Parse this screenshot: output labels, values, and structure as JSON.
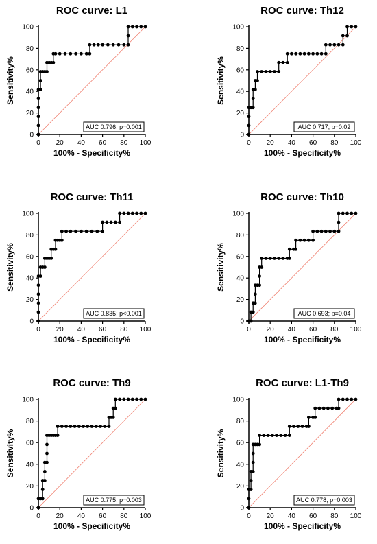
{
  "chart_data": [
    {
      "type": "line",
      "title": "ROC curve: L1",
      "xlabel": "100% - Specificity%",
      "ylabel": "Sensitivity%",
      "xlim": [
        0,
        100
      ],
      "ylim": [
        0,
        100
      ],
      "xticks": [
        "0",
        "20",
        "40",
        "60",
        "80",
        "100"
      ],
      "yticks": [
        "0",
        "20",
        "40",
        "60",
        "80",
        "100"
      ],
      "annotation": "AUC 0.796; p=0.001",
      "reference_line": true,
      "roc": [
        [
          0,
          0
        ],
        [
          0,
          8.3
        ],
        [
          0,
          16.7
        ],
        [
          0,
          25
        ],
        [
          0,
          33.3
        ],
        [
          0,
          41.7
        ],
        [
          2,
          41.7
        ],
        [
          2,
          50
        ],
        [
          2,
          58.3
        ],
        [
          4,
          58.3
        ],
        [
          6,
          58.3
        ],
        [
          8,
          58.3
        ],
        [
          8,
          66.7
        ],
        [
          10,
          66.7
        ],
        [
          12,
          66.7
        ],
        [
          14,
          66.7
        ],
        [
          14,
          75
        ],
        [
          16,
          75
        ],
        [
          20,
          75
        ],
        [
          25,
          75
        ],
        [
          30,
          75
        ],
        [
          35,
          75
        ],
        [
          40,
          75
        ],
        [
          45,
          75
        ],
        [
          48,
          75
        ],
        [
          48,
          83.3
        ],
        [
          52,
          83.3
        ],
        [
          56,
          83.3
        ],
        [
          60,
          83.3
        ],
        [
          65,
          83.3
        ],
        [
          70,
          83.3
        ],
        [
          75,
          83.3
        ],
        [
          80,
          83.3
        ],
        [
          84,
          83.3
        ],
        [
          84,
          91.7
        ],
        [
          84,
          100
        ],
        [
          88,
          100
        ],
        [
          92,
          100
        ],
        [
          96,
          100
        ],
        [
          100,
          100
        ]
      ]
    },
    {
      "type": "line",
      "title": "ROC curve: Th12",
      "xlabel": "100% - Specificity%",
      "ylabel": "Sensitivity%",
      "xlim": [
        0,
        100
      ],
      "ylim": [
        0,
        100
      ],
      "xticks": [
        "0",
        "20",
        "40",
        "60",
        "80",
        "100"
      ],
      "yticks": [
        "0",
        "20",
        "40",
        "60",
        "80",
        "100"
      ],
      "annotation": "AUC 0,717; p=0.02",
      "reference_line": true,
      "roc": [
        [
          0,
          0
        ],
        [
          0,
          8.3
        ],
        [
          0,
          16.7
        ],
        [
          0,
          25
        ],
        [
          2,
          25
        ],
        [
          4,
          25
        ],
        [
          4,
          33.3
        ],
        [
          4,
          41.7
        ],
        [
          6,
          41.7
        ],
        [
          6,
          50
        ],
        [
          8,
          50
        ],
        [
          8,
          58.3
        ],
        [
          12,
          58.3
        ],
        [
          16,
          58.3
        ],
        [
          20,
          58.3
        ],
        [
          24,
          58.3
        ],
        [
          28,
          58.3
        ],
        [
          28,
          66.7
        ],
        [
          32,
          66.7
        ],
        [
          36,
          66.7
        ],
        [
          36,
          75
        ],
        [
          40,
          75
        ],
        [
          44,
          75
        ],
        [
          48,
          75
        ],
        [
          52,
          75
        ],
        [
          56,
          75
        ],
        [
          60,
          75
        ],
        [
          64,
          75
        ],
        [
          68,
          75
        ],
        [
          72,
          75
        ],
        [
          72,
          83.3
        ],
        [
          76,
          83.3
        ],
        [
          80,
          83.3
        ],
        [
          84,
          83.3
        ],
        [
          88,
          83.3
        ],
        [
          88,
          91.7
        ],
        [
          92,
          91.7
        ],
        [
          92,
          100
        ],
        [
          96,
          100
        ],
        [
          100,
          100
        ]
      ]
    },
    {
      "type": "line",
      "title": "ROC curve: Th11",
      "xlabel": "100% - Specificity%",
      "ylabel": "Sensitivity%",
      "xlim": [
        0,
        100
      ],
      "ylim": [
        0,
        100
      ],
      "xticks": [
        "0",
        "20",
        "40",
        "60",
        "80",
        "100"
      ],
      "yticks": [
        "0",
        "20",
        "40",
        "60",
        "80",
        "100"
      ],
      "annotation": "AUC 0.835; p<0.001",
      "reference_line": true,
      "roc": [
        [
          0,
          0
        ],
        [
          0,
          8.3
        ],
        [
          0,
          16.7
        ],
        [
          0,
          25
        ],
        [
          0,
          33.3
        ],
        [
          0,
          41.7
        ],
        [
          2,
          41.7
        ],
        [
          2,
          50
        ],
        [
          4,
          50
        ],
        [
          6,
          50
        ],
        [
          6,
          58.3
        ],
        [
          8,
          58.3
        ],
        [
          10,
          58.3
        ],
        [
          12,
          58.3
        ],
        [
          12,
          66.7
        ],
        [
          14,
          66.7
        ],
        [
          16,
          66.7
        ],
        [
          16,
          75
        ],
        [
          18,
          75
        ],
        [
          20,
          75
        ],
        [
          22,
          75
        ],
        [
          22,
          83.3
        ],
        [
          26,
          83.3
        ],
        [
          30,
          83.3
        ],
        [
          35,
          83.3
        ],
        [
          40,
          83.3
        ],
        [
          45,
          83.3
        ],
        [
          50,
          83.3
        ],
        [
          55,
          83.3
        ],
        [
          60,
          83.3
        ],
        [
          60,
          91.7
        ],
        [
          64,
          91.7
        ],
        [
          68,
          91.7
        ],
        [
          72,
          91.7
        ],
        [
          76,
          91.7
        ],
        [
          76,
          100
        ],
        [
          80,
          100
        ],
        [
          84,
          100
        ],
        [
          88,
          100
        ],
        [
          92,
          100
        ],
        [
          96,
          100
        ],
        [
          100,
          100
        ]
      ]
    },
    {
      "type": "line",
      "title": "ROC curve: Th10",
      "xlabel": "100% - Specificity%",
      "ylabel": "Sensitivity%",
      "xlim": [
        0,
        100
      ],
      "ylim": [
        0,
        100
      ],
      "xticks": [
        "0",
        "20",
        "40",
        "60",
        "80",
        "100"
      ],
      "yticks": [
        "0",
        "20",
        "40",
        "60",
        "80",
        "100"
      ],
      "annotation": "AUC 0.693; p=0.04",
      "reference_line": true,
      "roc": [
        [
          0,
          0
        ],
        [
          2,
          0
        ],
        [
          2,
          8.3
        ],
        [
          4,
          8.3
        ],
        [
          4,
          16.7
        ],
        [
          6,
          16.7
        ],
        [
          6,
          25
        ],
        [
          6,
          33.3
        ],
        [
          8,
          33.3
        ],
        [
          10,
          33.3
        ],
        [
          10,
          41.7
        ],
        [
          10,
          50
        ],
        [
          12,
          50
        ],
        [
          12,
          58.3
        ],
        [
          16,
          58.3
        ],
        [
          20,
          58.3
        ],
        [
          24,
          58.3
        ],
        [
          28,
          58.3
        ],
        [
          32,
          58.3
        ],
        [
          36,
          58.3
        ],
        [
          38,
          58.3
        ],
        [
          38,
          66.7
        ],
        [
          42,
          66.7
        ],
        [
          44,
          66.7
        ],
        [
          44,
          75
        ],
        [
          48,
          75
        ],
        [
          52,
          75
        ],
        [
          56,
          75
        ],
        [
          60,
          75
        ],
        [
          60,
          83.3
        ],
        [
          64,
          83.3
        ],
        [
          68,
          83.3
        ],
        [
          72,
          83.3
        ],
        [
          76,
          83.3
        ],
        [
          80,
          83.3
        ],
        [
          84,
          83.3
        ],
        [
          84,
          91.7
        ],
        [
          84,
          100
        ],
        [
          88,
          100
        ],
        [
          92,
          100
        ],
        [
          96,
          100
        ],
        [
          100,
          100
        ]
      ]
    },
    {
      "type": "line",
      "title": "ROC curve: Th9",
      "xlabel": "100% - Specificity%",
      "ylabel": "Sensitivity%",
      "xlim": [
        0,
        100
      ],
      "ylim": [
        0,
        100
      ],
      "xticks": [
        "0",
        "20",
        "40",
        "60",
        "80",
        "100"
      ],
      "yticks": [
        "0",
        "20",
        "40",
        "60",
        "80",
        "100"
      ],
      "annotation": "AUC 0.775; p=0.003",
      "reference_line": true,
      "roc": [
        [
          0,
          0
        ],
        [
          0,
          8.3
        ],
        [
          2,
          8.3
        ],
        [
          4,
          8.3
        ],
        [
          4,
          16.7
        ],
        [
          4,
          25
        ],
        [
          6,
          25
        ],
        [
          6,
          33.3
        ],
        [
          6,
          41.7
        ],
        [
          8,
          41.7
        ],
        [
          8,
          50
        ],
        [
          8,
          58.3
        ],
        [
          8,
          66.7
        ],
        [
          10,
          66.7
        ],
        [
          12,
          66.7
        ],
        [
          14,
          66.7
        ],
        [
          16,
          66.7
        ],
        [
          18,
          66.7
        ],
        [
          18,
          75
        ],
        [
          22,
          75
        ],
        [
          26,
          75
        ],
        [
          30,
          75
        ],
        [
          34,
          75
        ],
        [
          38,
          75
        ],
        [
          42,
          75
        ],
        [
          46,
          75
        ],
        [
          50,
          75
        ],
        [
          54,
          75
        ],
        [
          58,
          75
        ],
        [
          62,
          75
        ],
        [
          66,
          75
        ],
        [
          66,
          83.3
        ],
        [
          68,
          83.3
        ],
        [
          70,
          83.3
        ],
        [
          70,
          91.7
        ],
        [
          72,
          91.7
        ],
        [
          72,
          100
        ],
        [
          76,
          100
        ],
        [
          80,
          100
        ],
        [
          84,
          100
        ],
        [
          88,
          100
        ],
        [
          92,
          100
        ],
        [
          96,
          100
        ],
        [
          100,
          100
        ]
      ]
    },
    {
      "type": "line",
      "title": "ROC curve: L1-Th9",
      "xlabel": "100% - Specificity%",
      "ylabel": "Sensitivity%",
      "xlim": [
        0,
        100
      ],
      "ylim": [
        0,
        100
      ],
      "xticks": [
        "0",
        "20",
        "40",
        "60",
        "80",
        "100"
      ],
      "yticks": [
        "0",
        "20",
        "40",
        "60",
        "80",
        "100"
      ],
      "annotation": "AUC 0.778; p=0.003",
      "reference_line": true,
      "roc": [
        [
          0,
          0
        ],
        [
          0,
          8.3
        ],
        [
          0,
          16.7
        ],
        [
          2,
          16.7
        ],
        [
          2,
          25
        ],
        [
          2,
          33.3
        ],
        [
          4,
          33.3
        ],
        [
          4,
          41.7
        ],
        [
          4,
          50
        ],
        [
          4,
          58.3
        ],
        [
          6,
          58.3
        ],
        [
          8,
          58.3
        ],
        [
          10,
          58.3
        ],
        [
          10,
          66.7
        ],
        [
          14,
          66.7
        ],
        [
          18,
          66.7
        ],
        [
          22,
          66.7
        ],
        [
          26,
          66.7
        ],
        [
          30,
          66.7
        ],
        [
          34,
          66.7
        ],
        [
          38,
          66.7
        ],
        [
          38,
          75
        ],
        [
          42,
          75
        ],
        [
          46,
          75
        ],
        [
          50,
          75
        ],
        [
          54,
          75
        ],
        [
          56,
          75
        ],
        [
          56,
          83.3
        ],
        [
          60,
          83.3
        ],
        [
          62,
          83.3
        ],
        [
          62,
          91.7
        ],
        [
          66,
          91.7
        ],
        [
          70,
          91.7
        ],
        [
          74,
          91.7
        ],
        [
          78,
          91.7
        ],
        [
          82,
          91.7
        ],
        [
          84,
          91.7
        ],
        [
          84,
          100
        ],
        [
          88,
          100
        ],
        [
          92,
          100
        ],
        [
          96,
          100
        ],
        [
          100,
          100
        ]
      ]
    }
  ]
}
